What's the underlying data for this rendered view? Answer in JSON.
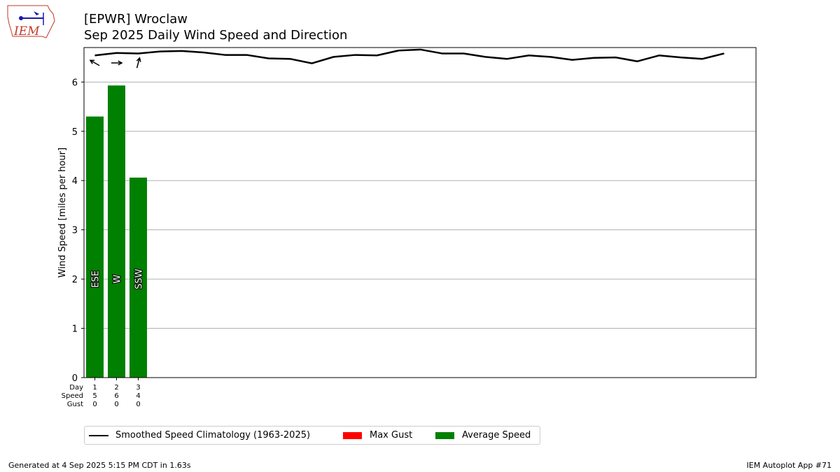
{
  "title_line1": "[EPWR] Wroclaw",
  "title_line2": "Sep 2025 Daily Wind Speed and Direction",
  "logo_text": "IEM",
  "footer_left": "Generated at 4 Sep 2025 5:15 PM CDT in 1.63s",
  "footer_right": "IEM Autoplot App #71",
  "legend": [
    {
      "label": "Smoothed Speed Climatology (1963-2025)",
      "kind": "line",
      "color": "#000000"
    },
    {
      "label": "Max Gust",
      "kind": "box",
      "color": "#ff0000"
    },
    {
      "label": "Average Speed",
      "kind": "box",
      "color": "#008000"
    }
  ],
  "colors": {
    "average_bar": "#008000",
    "gust": "#ff0000",
    "climatology": "#000000",
    "grid": "#b0b0b0"
  },
  "chart_data": {
    "type": "bar",
    "ylabel": "Wind Speed [miles per hour]",
    "ylim": [
      0,
      6.7
    ],
    "yticks": [
      0,
      1,
      2,
      3,
      4,
      5,
      6
    ],
    "grid": "horizontal",
    "legend_position": "below chart",
    "row_labels": [
      "Day",
      "Speed",
      "Gust"
    ],
    "days": [
      1,
      2,
      3
    ],
    "speed_labels": [
      "5",
      "6",
      "4"
    ],
    "gust_labels": [
      "0",
      "0",
      "0"
    ],
    "series": [
      {
        "name": "Average Speed",
        "values": [
          5.3,
          5.93,
          4.06
        ],
        "directions": [
          "ESE",
          "W",
          "SSW"
        ],
        "arrow_bearing_deg": [
          300,
          90,
          15
        ]
      },
      {
        "name": "Max Gust",
        "values": [
          0,
          0,
          0
        ]
      },
      {
        "name": "Smoothed Speed Climatology (1963-2025)",
        "x": [
          1,
          2,
          3,
          4,
          5,
          6,
          7,
          8,
          9,
          10,
          11,
          12,
          13,
          14,
          15,
          16,
          17,
          18,
          19,
          20,
          21,
          22,
          23,
          24,
          25,
          26,
          27,
          28,
          29,
          30
        ],
        "values": [
          6.54,
          6.59,
          6.58,
          6.62,
          6.63,
          6.6,
          6.55,
          6.55,
          6.48,
          6.47,
          6.38,
          6.51,
          6.55,
          6.54,
          6.64,
          6.66,
          6.58,
          6.58,
          6.51,
          6.47,
          6.54,
          6.51,
          6.45,
          6.49,
          6.5,
          6.42,
          6.54,
          6.5,
          6.47,
          6.58
        ]
      }
    ]
  }
}
